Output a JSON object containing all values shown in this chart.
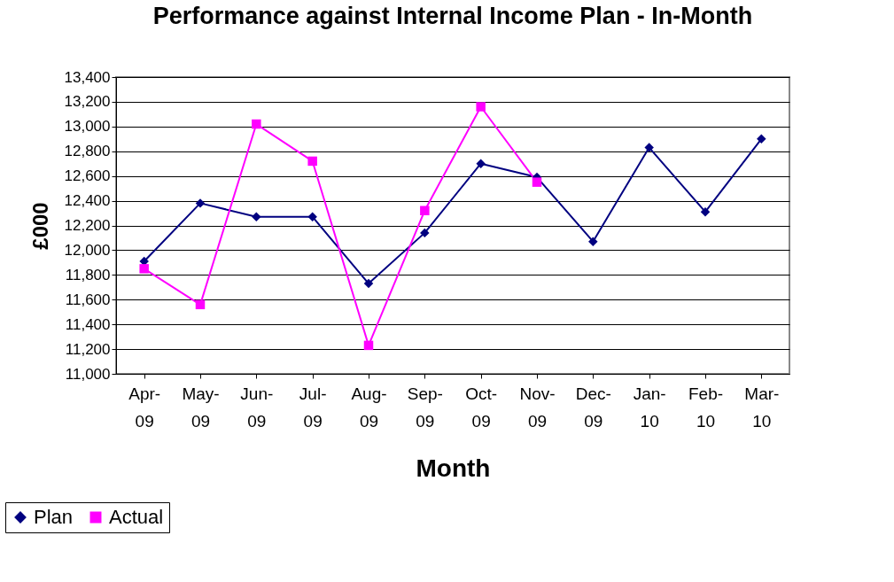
{
  "chart_data": {
    "type": "line",
    "title": "Performance against Internal Income Plan - In-Month",
    "xlabel": "Month",
    "ylabel": "£000",
    "categories": [
      "Apr-09",
      "May-09",
      "Jun-09",
      "Jul-09",
      "Aug-09",
      "Sep-09",
      "Oct-09",
      "Nov-09",
      "Dec-09",
      "Jan-10",
      "Feb-10",
      "Mar-10"
    ],
    "series": [
      {
        "name": "Plan",
        "color": "#000080",
        "marker": "diamond",
        "values": [
          11910,
          12380,
          12270,
          12270,
          11730,
          12140,
          12700,
          12590,
          12070,
          12830,
          12310,
          12900
        ]
      },
      {
        "name": "Actual",
        "color": "#ff00ff",
        "marker": "square",
        "values": [
          11850,
          11560,
          13020,
          12720,
          11230,
          12320,
          13160,
          12550,
          null,
          null,
          null,
          null
        ]
      }
    ],
    "ylim": [
      11000,
      13400
    ],
    "yticks": [
      {
        "value": 11000,
        "label": "11,000"
      },
      {
        "value": 11200,
        "label": "11,200"
      },
      {
        "value": 11400,
        "label": "11,400"
      },
      {
        "value": 11600,
        "label": "11,600"
      },
      {
        "value": 11800,
        "label": "11,800"
      },
      {
        "value": 12000,
        "label": "12,000"
      },
      {
        "value": 12200,
        "label": "12,200"
      },
      {
        "value": 12400,
        "label": "12,400"
      },
      {
        "value": 12600,
        "label": "12,600"
      },
      {
        "value": 12800,
        "label": "12,800"
      },
      {
        "value": 13000,
        "label": "13,000"
      },
      {
        "value": 13200,
        "label": "13,200"
      },
      {
        "value": 13400,
        "label": "13,400"
      }
    ],
    "grid": "y",
    "legend": "bottom left",
    "line_style": "solid"
  }
}
